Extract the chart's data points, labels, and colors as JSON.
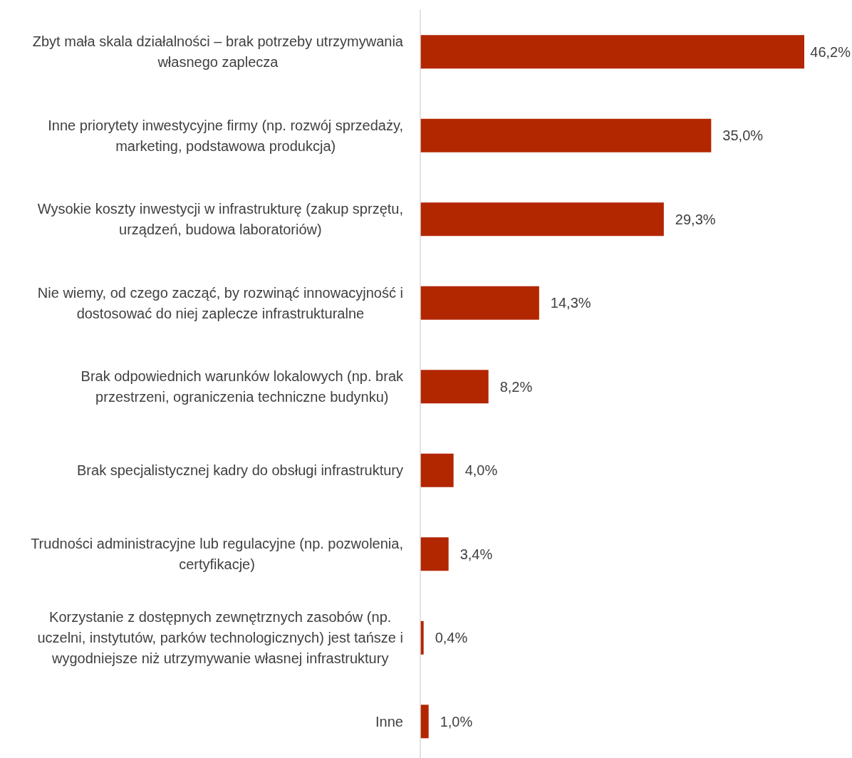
{
  "chart_data": {
    "type": "bar",
    "orientation": "horizontal",
    "categories": [
      "Zbyt mała skala działalności – brak potrzeby utrzymywania własnego zaplecza",
      "Inne priorytety inwestycyjne firmy (np. rozwój sprzedaży, marketing, podstawowa produkcja)",
      "Wysokie koszty inwestycji w infrastrukturę (zakup sprzętu, urządzeń, budowa laboratoriów)",
      "Nie wiemy, od czego zacząć, by rozwinąć innowacyjność i dostosować do niej zaplecze infrastrukturalne",
      "Brak odpowiednich warunków lokalowych (np. brak przestrzeni, ograniczenia techniczne budynku)",
      "Brak specjalistycznej kadry do obsługi infrastruktury",
      "Trudności administracyjne lub regulacyjne (np. pozwolenia, certyfikacje)",
      "Korzystanie z dostępnych zewnętrznych zasobów (np. uczelni, instytutów, parków technologicznych) jest tańsze i wygodniejsze niż utrzymywanie własnej infrastruktury",
      "Inne"
    ],
    "values": [
      46.2,
      35.0,
      29.3,
      14.3,
      8.2,
      4.0,
      3.4,
      0.4,
      1.0
    ],
    "value_labels": [
      "46,2%",
      "35,0%",
      "29,3%",
      "14,3%",
      "8,2%",
      "4,0%",
      "3,4%",
      "0,4%",
      "1,0%"
    ],
    "color": "#b22600"
  }
}
